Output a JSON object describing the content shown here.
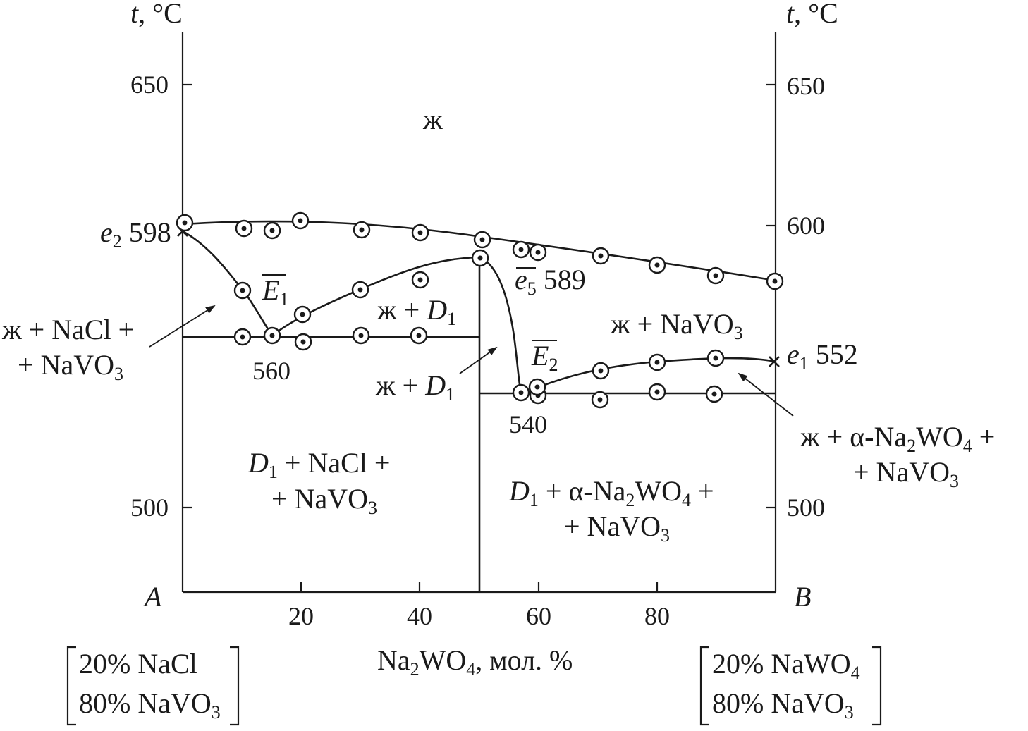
{
  "axes": {
    "left_title_t": "t",
    "left_title_unit": ", °C",
    "right_title_t": "t",
    "right_title_unit": ", °C",
    "y_ticks": [
      "650",
      "600",
      "500"
    ],
    "x_ticks": [
      "20",
      "40",
      "60",
      "80"
    ],
    "corner_left": "A",
    "corner_right": "B",
    "xlabel_pre": "Na",
    "xlabel_sub1": "2",
    "xlabel_mid": "WO",
    "xlabel_sub2": "4",
    "xlabel_post": ", мол. %"
  },
  "regions": {
    "liquid": "ж",
    "liq_d1_upper_pre": "ж + ",
    "liq_d1_upper_d": "D",
    "liq_d1_upper_sub": "1",
    "liq_navo3_pre": "ж + NaVO",
    "liq_navo3_sub": "3",
    "left_arrow_line1": "ж + NaCl +",
    "left_arrow_line2_pre": "+ NaVO",
    "left_arrow_line2_sub": "3",
    "mid_arrow_pre": "ж + ",
    "mid_arrow_d": "D",
    "mid_arrow_sub": "1",
    "right_arrow_line1_pre": "ж + α-Na",
    "right_arrow_line1_sub1": "2",
    "right_arrow_line1_mid": "WO",
    "right_arrow_line1_sub2": "4",
    "right_arrow_line1_post": " +",
    "right_arrow_line2_pre": "+ NaVO",
    "right_arrow_line2_sub": "3",
    "bottom_left_d": "D",
    "bottom_left_sub": "1",
    "bottom_left_line1_post": " + NaCl +",
    "bottom_left_line2_pre": "+ NaVO",
    "bottom_left_line2_sub": "3",
    "bottom_right_d": "D",
    "bottom_right_sub": "1",
    "bottom_right_line1_mid": " + α-Na",
    "bottom_right_line1_sub1": "2",
    "bottom_right_line1_wo": "WO",
    "bottom_right_line1_sub2": "4",
    "bottom_right_line1_post": " +",
    "bottom_right_line2_pre": "+ NaVO",
    "bottom_right_line2_sub": "3"
  },
  "points": {
    "e2_letter": "e",
    "e2_sub": "2",
    "e2_value": " 598",
    "e1_letter": "e",
    "e1_sub": "1",
    "e1_value": " 552",
    "e5_letter": "e",
    "e5_sub": "5",
    "e5_value": " 589",
    "E1_letter": "E",
    "E1_sub": "1",
    "E2_letter": "E",
    "E2_sub": "2",
    "t560": "560",
    "t540": "540"
  },
  "composition_left": {
    "line1": "20% NaCl",
    "line2_pre": "80% NaVO",
    "line2_sub": "3"
  },
  "composition_right": {
    "line1_pre": "20% NaWO",
    "line1_sub": "4",
    "line2_pre": "80% NaVO",
    "line2_sub": "3"
  },
  "chart_data": {
    "type": "scatter",
    "x_range": [
      0,
      100
    ],
    "y_range": [
      470,
      670
    ],
    "liquidus_points": [
      [
        0,
        600
      ],
      [
        10,
        598
      ],
      [
        15,
        597
      ],
      [
        20,
        600
      ],
      [
        30,
        597
      ],
      [
        40,
        596
      ],
      [
        50,
        594
      ],
      [
        57,
        592
      ],
      [
        60,
        591
      ],
      [
        70,
        589
      ],
      [
        80,
        586
      ],
      [
        90,
        582
      ],
      [
        100,
        580
      ]
    ],
    "secondary_points": [
      [
        10,
        577
      ],
      [
        20,
        569
      ],
      [
        30,
        577
      ],
      [
        40,
        580
      ],
      [
        50,
        588
      ],
      [
        57,
        540
      ],
      [
        60,
        542
      ],
      [
        70,
        548
      ],
      [
        80,
        551
      ],
      [
        90,
        553
      ]
    ],
    "solidus_560_points": [
      [
        10,
        560
      ],
      [
        15,
        560
      ],
      [
        20,
        558
      ],
      [
        30,
        560
      ],
      [
        40,
        560
      ]
    ],
    "solidus_540_points": [
      [
        57,
        540
      ],
      [
        60,
        540
      ],
      [
        70,
        538
      ],
      [
        80,
        540
      ],
      [
        90,
        540
      ]
    ]
  }
}
